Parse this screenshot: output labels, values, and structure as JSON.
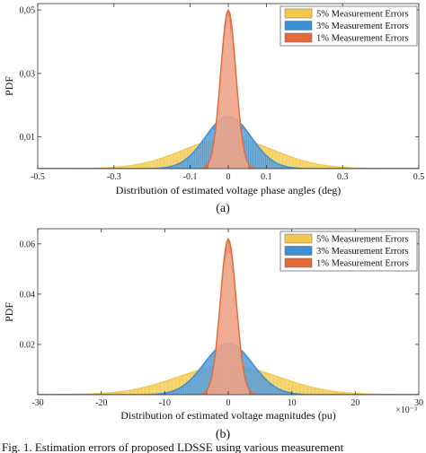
{
  "chart_data": [
    {
      "type": "area",
      "subplot_label": "(a)",
      "xlabel": "Distribution of estimated voltage phase angles (deg)",
      "ylabel": "PDF",
      "xlim": [
        -0.5,
        0.5
      ],
      "ylim": [
        0,
        0.052
      ],
      "xticks": [
        -0.5,
        -0.3,
        -0.1,
        0,
        0.1,
        0.3,
        0.5
      ],
      "xtick_labels": [
        "-0.5",
        "-0.3",
        "-0.1",
        "0",
        "0.1",
        "0.3",
        "0.5"
      ],
      "yticks": [
        0.01,
        0.03,
        0.05
      ],
      "ytick_labels": [
        "0,01",
        "0,03",
        "0,05"
      ],
      "legend_position": "top-right",
      "series": [
        {
          "name": "5% Measurement Errors",
          "color": "#f2c94c",
          "peak": 0.0095,
          "sigma": 0.12
        },
        {
          "name": "3% Measurement Errors",
          "color": "#3c8fd6",
          "peak": 0.0165,
          "sigma": 0.06
        },
        {
          "name": "1% Measurement Errors",
          "color": "#e2693a",
          "peak": 0.05,
          "sigma": 0.02
        }
      ]
    },
    {
      "type": "area",
      "subplot_label": "(b)",
      "xlabel": "Distribution of estimated voltage magnitudes (pu)",
      "ylabel": "PDF",
      "x_multiplier": "×10⁻³",
      "xlim": [
        -30,
        30
      ],
      "ylim": [
        0,
        0.066
      ],
      "xticks": [
        -30,
        -20,
        -10,
        0,
        10,
        20,
        30
      ],
      "xtick_labels": [
        "-30",
        "-20",
        "-10",
        "0",
        "10",
        "20",
        "30"
      ],
      "yticks": [
        0.02,
        0.04,
        0.06
      ],
      "ytick_labels": [
        "0.02",
        "0.04",
        "0.06"
      ],
      "legend_position": "top-right",
      "series": [
        {
          "name": "5% Measurement Errors",
          "color": "#f2c94c",
          "peak": 0.0115,
          "sigma": 8.0
        },
        {
          "name": "3% Measurement Errors",
          "color": "#3c8fd6",
          "peak": 0.0205,
          "sigma": 3.8
        },
        {
          "name": "1% Measurement Errors",
          "color": "#e2693a",
          "peak": 0.062,
          "sigma": 1.25
        }
      ]
    }
  ],
  "caption": "Fig. 1. Estimation errors of proposed LDSSE using various measurement"
}
